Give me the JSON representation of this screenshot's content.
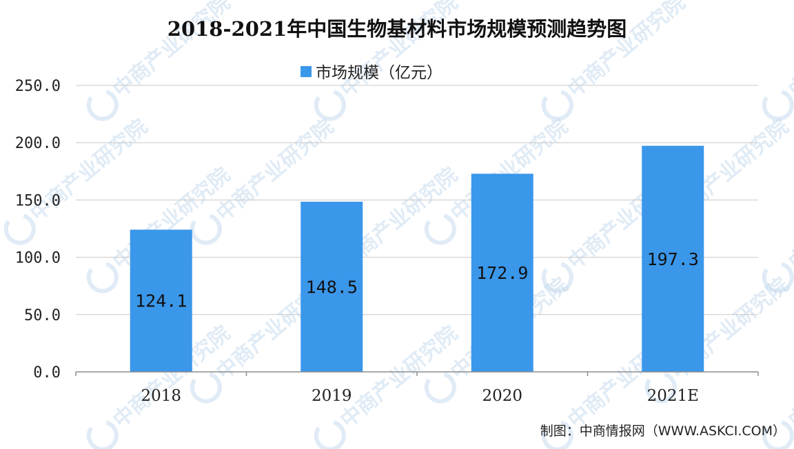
{
  "chart_data": {
    "type": "bar",
    "title": "2018-2021年中国生物基材料市场规模预测趋势图",
    "legend": {
      "entries": [
        "市场规模（亿元）"
      ],
      "placement": "top-center"
    },
    "categories": [
      "2018",
      "2019",
      "2020",
      "2021E"
    ],
    "series": [
      {
        "name": "市场规模（亿元）",
        "values": [
          124.1,
          148.5,
          172.9,
          197.3
        ],
        "labels": [
          "124.1",
          "148.5",
          "172.9",
          "197.3"
        ],
        "color": "#3a97ea"
      }
    ],
    "yticks": [
      "0.0",
      "50.0",
      "100.0",
      "150.0",
      "200.0",
      "250.0"
    ],
    "ylim": [
      0,
      250
    ],
    "grid": true,
    "xlabel": "",
    "ylabel": ""
  },
  "source": "制图：中商情报网（WWW.ASKCI.COM）",
  "watermark": {
    "text": "中商产业研究院",
    "color": "#c7dbee"
  }
}
